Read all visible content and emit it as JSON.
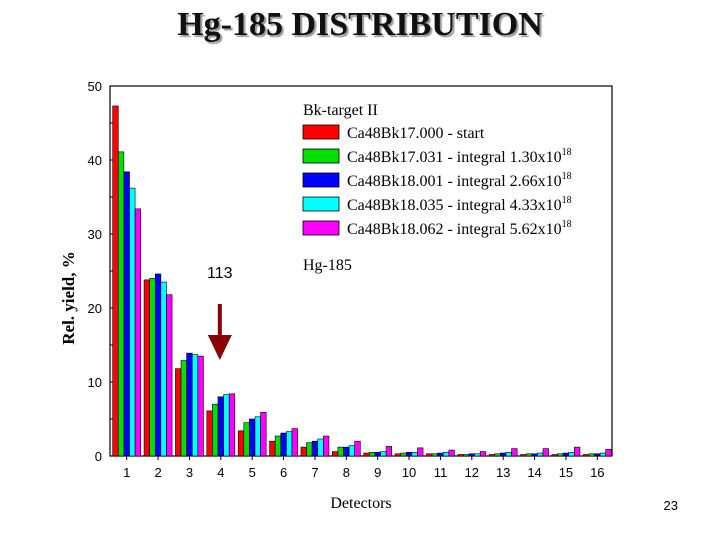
{
  "slide": {
    "title": "Hg-185 DISTRIBUTION",
    "page_number": "23"
  },
  "chart_data": {
    "type": "bar",
    "title": "Hg-185 DISTRIBUTION",
    "xlabel": "Detectors",
    "ylabel": "Rel. yield, %",
    "ylim": [
      0,
      50
    ],
    "yticks": [
      0,
      10,
      20,
      30,
      40,
      50
    ],
    "categories": [
      "1",
      "2",
      "3",
      "4",
      "5",
      "6",
      "7",
      "8",
      "9",
      "10",
      "11",
      "12",
      "13",
      "14",
      "15",
      "16"
    ],
    "legend": {
      "title": "Bk-target II",
      "footer": "Hg-185",
      "position": "top-right"
    },
    "series": [
      {
        "name": "Ca48Bk17.000 - start",
        "color": "#ff0000",
        "values": [
          47.3,
          23.8,
          11.8,
          6.1,
          3.4,
          2.0,
          1.2,
          0.6,
          0.4,
          0.3,
          0.3,
          0.2,
          0.2,
          0.2,
          0.2,
          0.2
        ]
      },
      {
        "name": "Ca48Bk17.031 - integral 1.30x10",
        "sup": "18",
        "color": "#00e000",
        "values": [
          41.1,
          24.0,
          12.9,
          7.0,
          4.5,
          2.7,
          1.8,
          1.2,
          0.5,
          0.4,
          0.3,
          0.2,
          0.3,
          0.3,
          0.3,
          0.3
        ]
      },
      {
        "name": "Ca48Bk18.001 - integral 2.66x10",
        "sup": "18",
        "color": "#0000ff",
        "values": [
          38.4,
          24.6,
          13.9,
          8.0,
          5.0,
          3.1,
          2.0,
          1.2,
          0.5,
          0.5,
          0.4,
          0.3,
          0.4,
          0.3,
          0.4,
          0.3
        ]
      },
      {
        "name": "Ca48Bk18.035 - integral 4.33x10",
        "sup": "18",
        "color": "#00ffff",
        "values": [
          36.2,
          23.5,
          13.7,
          8.3,
          5.3,
          3.3,
          2.3,
          1.4,
          0.6,
          0.5,
          0.5,
          0.3,
          0.5,
          0.4,
          0.5,
          0.4
        ]
      },
      {
        "name": "Ca48Bk18.062 - integral 5.62x10",
        "sup": "18",
        "color": "#ff00ff",
        "values": [
          33.4,
          21.8,
          13.5,
          8.4,
          5.9,
          3.7,
          2.7,
          2.0,
          1.3,
          1.1,
          0.8,
          0.6,
          1.0,
          1.0,
          1.2,
          0.9
        ]
      }
    ],
    "annotations": [
      {
        "text": "113",
        "detector": "4",
        "arrow": "down",
        "color": "#8b0000"
      }
    ]
  }
}
